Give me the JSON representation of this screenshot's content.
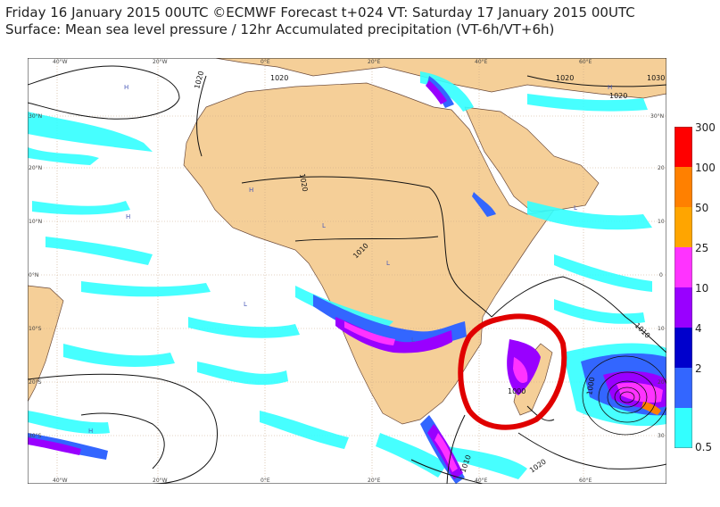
{
  "title_line1": "Friday 16 January 2015 00UTC ©ECMWF Forecast t+024 VT: Saturday 17 January 2015 00UTC",
  "title_line2": "Surface: Mean sea level pressure / 12hr Accumulated precipitation (VT-6h/VT+6h)",
  "lon_labels": [
    "40°W",
    "20°W",
    "0°E",
    "20°E",
    "40°E",
    "60°E"
  ],
  "lat_labels": [
    "30°N",
    "20°N",
    "10°N",
    "0°N",
    "10°S",
    "20°S",
    "30°S"
  ],
  "lat_labels_right": [
    "30°N",
    "20",
    "10",
    "0",
    "10",
    "20",
    "30"
  ],
  "isobar_labels": [
    "1020",
    "1020",
    "1020",
    "1020",
    "1030",
    "1020",
    "1010",
    "1010",
    "1000",
    "1000",
    "1010",
    "1020"
  ],
  "pressure_letters": [
    "H",
    "H",
    "H",
    "H",
    "H",
    "L",
    "L",
    "L",
    "L",
    "L"
  ],
  "legend": {
    "labels": [
      "300",
      "100",
      "50",
      "25",
      "10",
      "4",
      "2",
      "0.5"
    ],
    "colors": [
      "#ff0000",
      "#ff8000",
      "#ffa500",
      "#ff33ff",
      "#9900ff",
      "#0000cc",
      "#3366ff",
      "#33ffff"
    ]
  },
  "colors": {
    "land": "#f5cf98",
    "ocean": "#ffffff",
    "precip_light": "#33ffff",
    "precip_mid": "#3366ff",
    "precip_heavy": "#9900ff",
    "precip_extreme": "#ff33ff",
    "annotation_circle": "#e00000",
    "grid": "#c8a888"
  }
}
